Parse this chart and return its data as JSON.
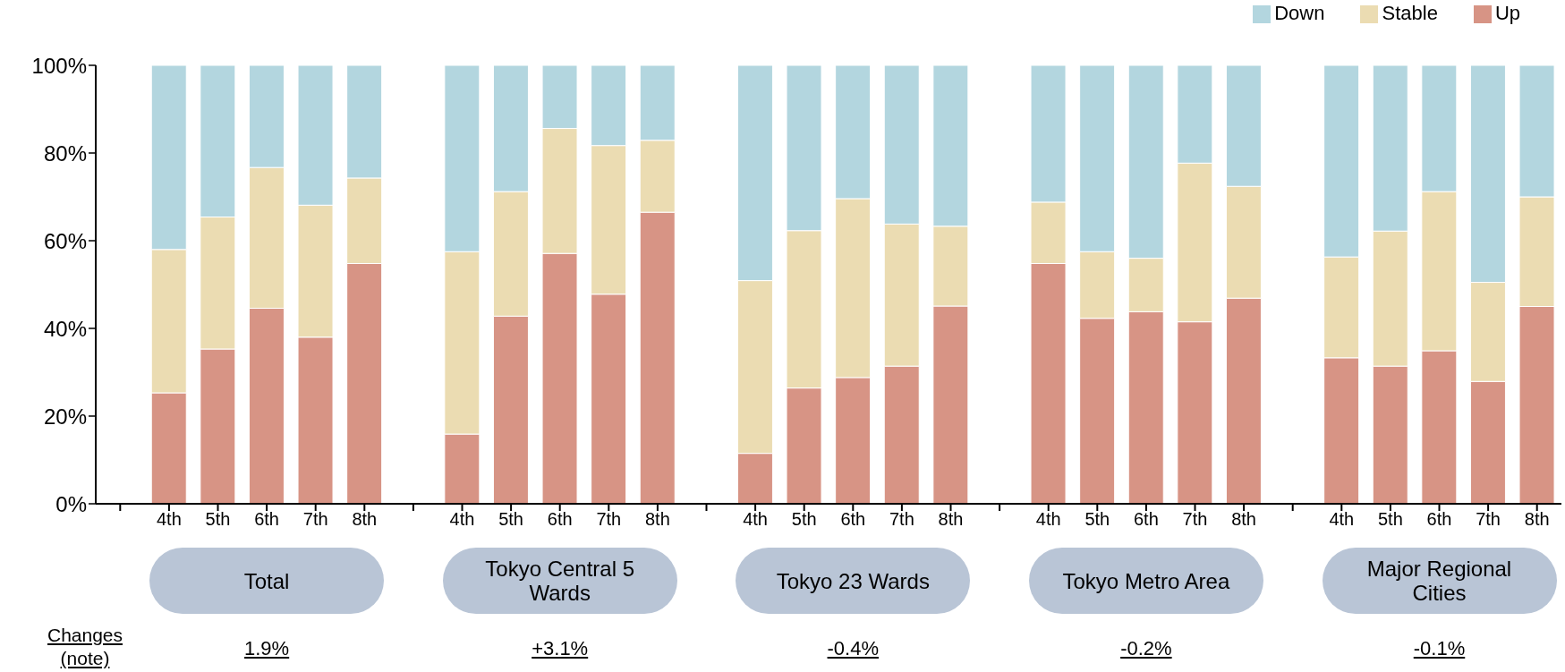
{
  "chart_data": {
    "type": "bar",
    "stacked": true,
    "categories": [
      null,
      "4th",
      "5th",
      "6th",
      "7th",
      "8th",
      null,
      "4th",
      "5th",
      "6th",
      "7th",
      "8th",
      null,
      "4th",
      "5th",
      "6th",
      "7th",
      "8th",
      null,
      "4th",
      "5th",
      "6th",
      "7th",
      "8th",
      null,
      "4th",
      "5th",
      "6th",
      "7th",
      "8th"
    ],
    "series": [
      {
        "name": "Up",
        "color": "#d79485",
        "values": [
          null,
          25.3,
          35.3,
          44.6,
          38.0,
          54.8,
          null,
          15.9,
          42.8,
          57.1,
          47.8,
          66.5,
          null,
          11.5,
          26.4,
          28.8,
          31.4,
          45.1,
          null,
          54.8,
          42.3,
          43.8,
          41.5,
          46.9,
          null,
          33.3,
          31.4,
          34.9,
          27.9,
          45.0
        ]
      },
      {
        "name": "Stable",
        "color": "#ebdcb2",
        "values": [
          null,
          32.7,
          30.1,
          32.1,
          30.1,
          19.5,
          null,
          41.6,
          28.4,
          28.5,
          33.9,
          16.4,
          null,
          39.4,
          35.9,
          40.8,
          32.4,
          18.2,
          null,
          14.0,
          15.2,
          12.2,
          36.2,
          25.5,
          null,
          23.0,
          30.8,
          36.3,
          22.6,
          25.0
        ]
      },
      {
        "name": "Down",
        "color": "#b3d6df",
        "values": [
          null,
          42.0,
          34.6,
          23.3,
          31.9,
          25.7,
          null,
          42.5,
          28.8,
          14.4,
          18.3,
          17.1,
          null,
          49.1,
          37.7,
          30.4,
          36.2,
          36.7,
          null,
          31.2,
          42.5,
          44.0,
          22.3,
          27.6,
          null,
          43.7,
          37.8,
          28.8,
          49.5,
          30.0
        ]
      }
    ],
    "ylim": [
      0,
      100
    ],
    "yticks": [
      {
        "value": 0,
        "label": "0%"
      },
      {
        "value": 20,
        "label": "20%"
      },
      {
        "value": 40,
        "label": "40%"
      },
      {
        "value": 60,
        "label": "60%"
      },
      {
        "value": 80,
        "label": "80%"
      },
      {
        "value": 100,
        "label": "100%"
      }
    ],
    "grid": false,
    "legend": "top right",
    "annotations": [
      "Total",
      "Tokyo Central 5 Wards",
      "Tokyo 23 Wards",
      "Tokyo Metro Area",
      "Major Regional Cities",
      "Changes (note)",
      "1.9%",
      "+3.1%",
      "-0.4%",
      "-0.2%",
      "-0.1%"
    ]
  }
}
